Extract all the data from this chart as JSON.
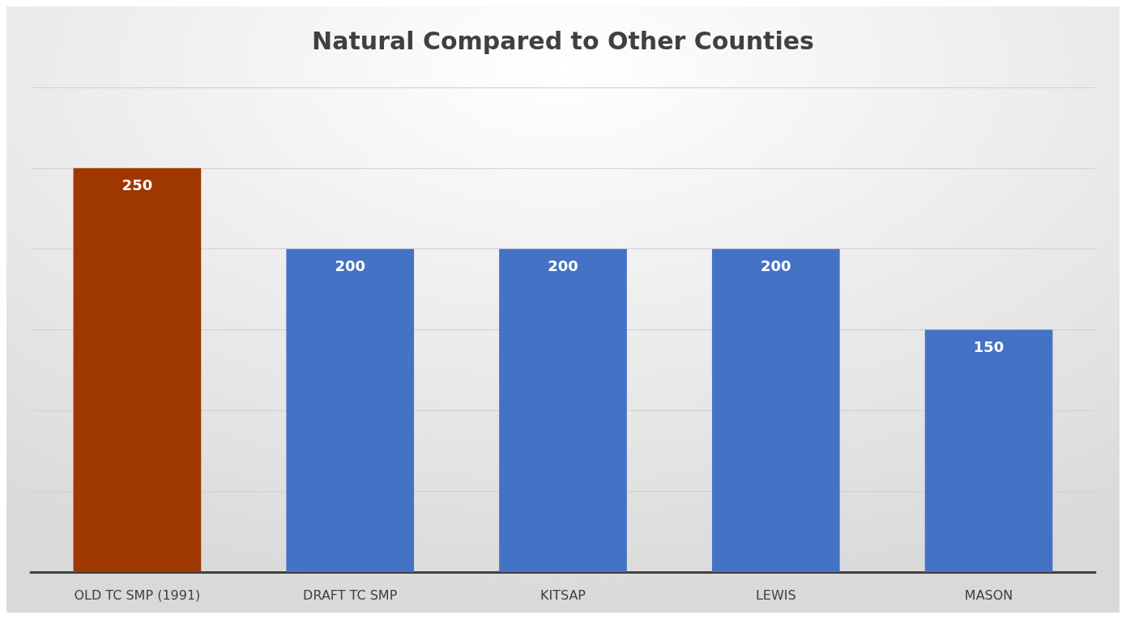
{
  "chart_data": {
    "type": "bar",
    "title": "Natural Compared to Other Counties",
    "categories": [
      "OLD TC SMP (1991)",
      "DRAFT TC SMP",
      "KITSAP",
      "LEWIS",
      "MASON"
    ],
    "values": [
      250,
      200,
      200,
      200,
      150
    ],
    "colors": [
      "#9e3700",
      "#4472c4",
      "#4472c4",
      "#4472c4",
      "#4472c4"
    ],
    "ylim": [
      0,
      300
    ],
    "yticks": [
      {
        "value": 0,
        "label": null
      },
      {
        "value": 50,
        "label": null
      },
      {
        "value": 100,
        "label": null
      },
      {
        "value": 150,
        "label": null
      },
      {
        "value": 200,
        "label": null
      },
      {
        "value": 250,
        "label": null
      },
      {
        "value": 300,
        "label": null
      }
    ],
    "tick_labels": "x",
    "grid": "y",
    "data_labels": true
  }
}
